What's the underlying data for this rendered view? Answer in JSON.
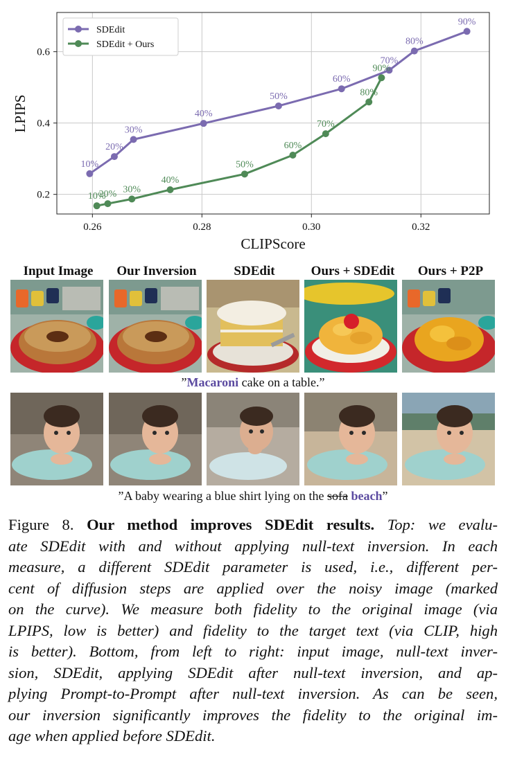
{
  "chart_data": {
    "type": "line",
    "xlabel": "CLIPScore",
    "ylabel": "LPIPS",
    "xlim": [
      0.2535,
      0.3325
    ],
    "ylim": [
      0.145,
      0.71
    ],
    "xticks": [
      0.26,
      0.28,
      0.3,
      0.32
    ],
    "xtick_labels": [
      "0.26",
      "0.28",
      "0.30",
      "0.32"
    ],
    "yticks": [
      0.2,
      0.4,
      0.6
    ],
    "ytick_labels": [
      "0.2",
      "0.4",
      "0.6"
    ],
    "grid": true,
    "legend_position": "top-left",
    "series": [
      {
        "name": "SDEdit",
        "color": "#7b6bb0",
        "x": [
          0.2595,
          0.264,
          0.2675,
          0.2803,
          0.294,
          0.3055,
          0.3142,
          0.3188,
          0.3284
        ],
        "y": [
          0.258,
          0.306,
          0.354,
          0.399,
          0.448,
          0.496,
          0.548,
          0.602,
          0.657
        ],
        "labels": [
          "10%",
          "20%",
          "30%",
          "40%",
          "50%",
          "60%",
          "70%",
          "80%",
          "90%"
        ]
      },
      {
        "name": "SDEdit + Ours",
        "color": "#4f8a57",
        "x": [
          0.2608,
          0.2628,
          0.2672,
          0.2742,
          0.2878,
          0.2966,
          0.3026,
          0.3105,
          0.3128
        ],
        "y": [
          0.168,
          0.174,
          0.187,
          0.213,
          0.257,
          0.31,
          0.37,
          0.459,
          0.527
        ],
        "labels": [
          "10%",
          "20%",
          "30%",
          "40%",
          "50%",
          "60%",
          "70%",
          "80%",
          "90%"
        ]
      }
    ]
  },
  "column_headers": [
    "Input Image",
    "Our Inversion",
    "SDEdit",
    "Ours + SDEdit",
    "Ours + P2P"
  ],
  "prompt1": {
    "open": "”",
    "highlight": "Macaroni",
    "rest": " cake on a table.”"
  },
  "prompt2": {
    "start": "”A baby wearing a blue shirt lying on the ",
    "strike": "sofa",
    "space": " ",
    "highlight": "beach",
    "end": "”"
  },
  "caption": {
    "figure_label": "Figure 8. ",
    "title": "Our method improves SDEdit results.",
    "lines": [
      " Top: we evalu-",
      "ate SDEdit with and without applying null-text inversion. In each",
      "measure, a different SDEdit parameter is used, i.e., different per-",
      "cent of diffusion steps are applied over the noisy image (marked",
      "on the curve). We measure both fidelity to the original image (via",
      "LPIPS, low is better) and fidelity to the target text (via CLIP, high",
      "is better). Bottom, from left to right: input image, null-text inver-",
      "sion, SDEdit, applying SDEdit after null-text inversion, and ap-",
      "plying Prompt-to-Prompt after null-text inversion. As can be seen,",
      "our inversion significantly improves the fidelity to the original im-",
      "age when applied before SDEdit."
    ]
  }
}
